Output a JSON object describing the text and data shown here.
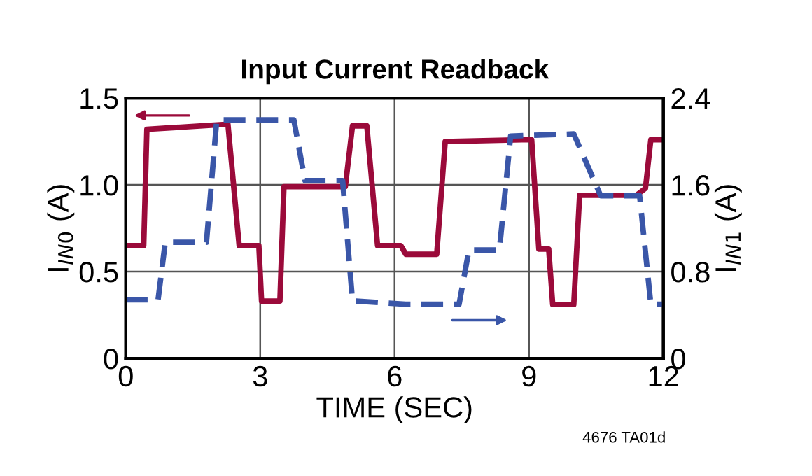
{
  "chart_data": {
    "type": "line",
    "title": "Input Current Readback",
    "xlabel": "TIME (SEC)",
    "ylabel": "I$_{IN0}$ (A)",
    "y2label": "I$_{IN1}$ (A)",
    "xlim": [
      0,
      12
    ],
    "xticks": [
      0,
      3,
      6,
      9,
      12
    ],
    "ylim": [
      0,
      1.5
    ],
    "yticks": [
      0,
      0.5,
      {
        "value": 1,
        "label": "1.0"
      },
      1.5
    ],
    "y2lim": [
      0,
      2.4
    ],
    "y2ticks": [
      0,
      0.8,
      1.6,
      2.4
    ],
    "grid": true,
    "marker": "none",
    "series": [
      {
        "color": "#9b0a3a",
        "line_style": "solid",
        "x": [
          0,
          0.4,
          0.47,
          2.28,
          2.53,
          2.97,
          3.03,
          3.44,
          3.53,
          4.9,
          5.06,
          5.38,
          5.62,
          6.14,
          6.25,
          6.94,
          7.13,
          8.84,
          9.06,
          9.22,
          9.44,
          9.53,
          10.0,
          10.13,
          11.4,
          11.6,
          11.72,
          12
        ],
        "values": [
          0.65,
          0.65,
          1.32,
          1.35,
          0.65,
          0.65,
          0.33,
          0.33,
          0.99,
          0.99,
          1.34,
          1.34,
          0.65,
          0.65,
          0.6,
          0.6,
          1.25,
          1.26,
          1.26,
          0.63,
          0.63,
          0.31,
          0.31,
          0.94,
          0.94,
          0.98,
          1.26,
          1.26
        ]
      },
      {
        "color": "#3a56a8",
        "line_style": "dashed",
        "axis": "y2",
        "x": [
          0,
          0.72,
          0.88,
          1.8,
          2.03,
          3.75,
          4.0,
          4.84,
          5.06,
          6.25,
          7.44,
          7.66,
          8.34,
          8.59,
          10.0,
          10.6,
          11.47,
          11.72,
          12
        ],
        "values": [
          0.54,
          0.54,
          1.07,
          1.07,
          2.2,
          2.2,
          1.64,
          1.64,
          0.53,
          0.5,
          0.5,
          1.0,
          1.0,
          2.05,
          2.07,
          1.5,
          1.5,
          0.5,
          0.5
        ]
      }
    ],
    "annotations": [
      "4676 TA01d"
    ]
  }
}
